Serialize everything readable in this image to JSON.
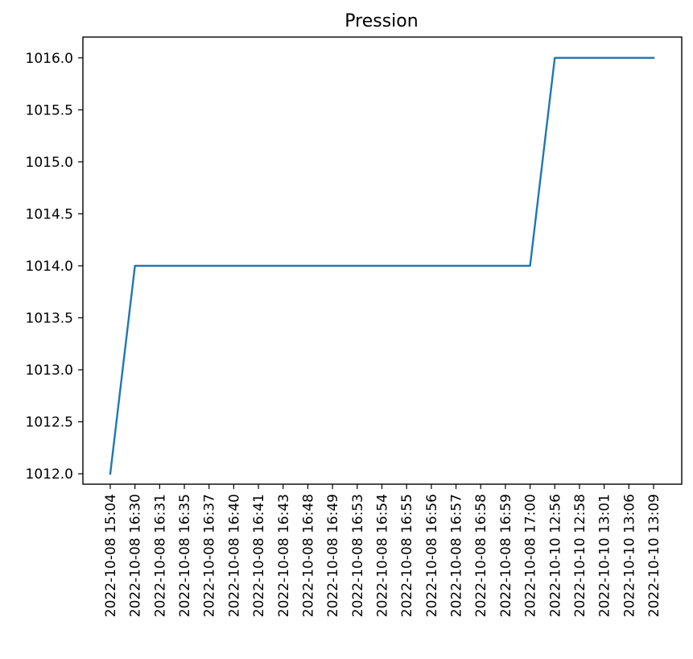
{
  "chart_data": {
    "type": "line",
    "title": "Pression",
    "xlabel": "",
    "ylabel": "",
    "categories": [
      "2022-10-08 15:04",
      "2022-10-08 16:30",
      "2022-10-08 16:31",
      "2022-10-08 16:35",
      "2022-10-08 16:37",
      "2022-10-08 16:40",
      "2022-10-08 16:41",
      "2022-10-08 16:43",
      "2022-10-08 16:48",
      "2022-10-08 16:49",
      "2022-10-08 16:53",
      "2022-10-08 16:54",
      "2022-10-08 16:55",
      "2022-10-08 16:56",
      "2022-10-08 16:57",
      "2022-10-08 16:58",
      "2022-10-08 16:59",
      "2022-10-08 17:00",
      "2022-10-10 12:56",
      "2022-10-10 12:58",
      "2022-10-10 13:01",
      "2022-10-10 13:06",
      "2022-10-10 13:09"
    ],
    "series": [
      {
        "values": [
          1012.0,
          1014.0,
          1014.0,
          1014.0,
          1014.0,
          1014.0,
          1014.0,
          1014.0,
          1014.0,
          1014.0,
          1014.0,
          1014.0,
          1014.0,
          1014.0,
          1014.0,
          1014.0,
          1014.0,
          1014.0,
          1016.0,
          1016.0,
          1016.0,
          1016.0,
          1016.0
        ]
      }
    ],
    "yticks": [
      "1012.0",
      "1012.5",
      "1013.0",
      "1013.5",
      "1014.0",
      "1014.5",
      "1015.0",
      "1015.5",
      "1016.0"
    ],
    "ylim": [
      1011.9,
      1016.2
    ],
    "grid": false,
    "colors": {
      "line": "#1f77b4",
      "axes": "#000000"
    }
  }
}
